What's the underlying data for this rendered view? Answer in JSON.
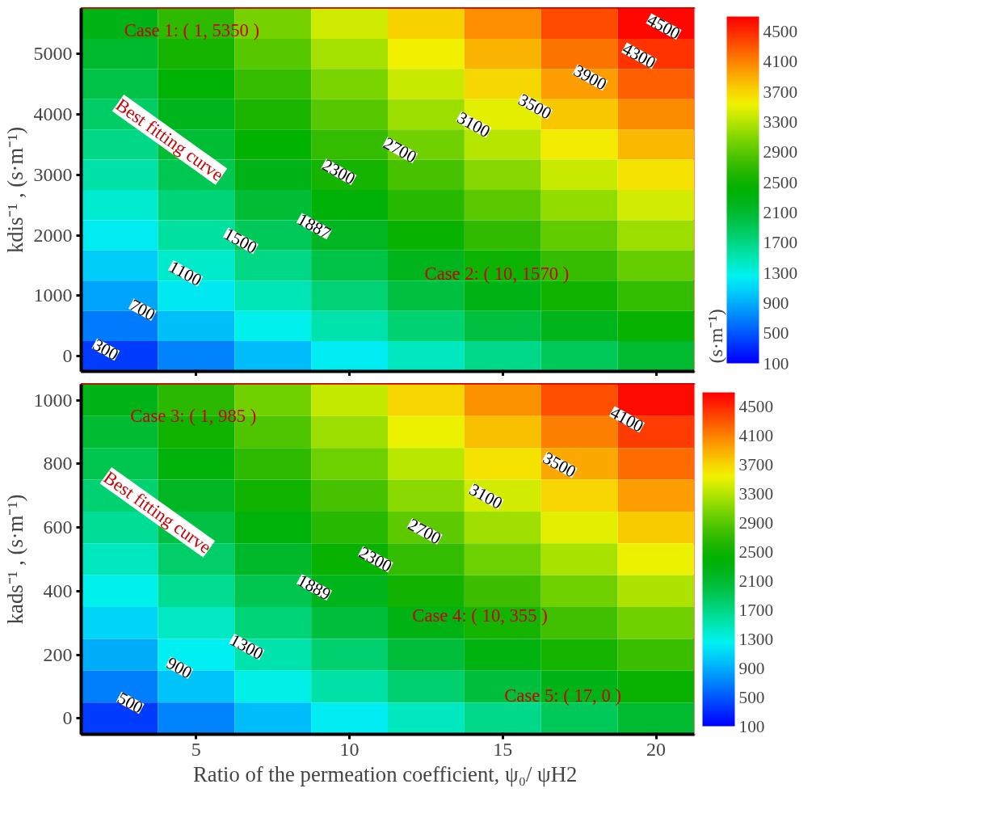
{
  "chart_data": [
    {
      "type": "heatmap",
      "ylabel": "kdis⁻¹ , (s·m⁻¹)",
      "clabel": "(s·m⁻¹)",
      "tick_labels": "y",
      "categories": [
        null,
        "5",
        null,
        "10",
        null,
        "15",
        null,
        "20"
      ],
      "y_categories": [
        null,
        "5000",
        null,
        "4000",
        null,
        "3000",
        null,
        "2000",
        null,
        "1000",
        null,
        "0"
      ],
      "cells": [
        [
          2258,
          2673,
          3042,
          3390,
          3722,
          4043,
          4355,
          4661
        ],
        [
          2124,
          2530,
          2891,
          3229,
          3552,
          3865,
          4168,
          4465
        ],
        [
          1984,
          2382,
          2734,
          3063,
          3378,
          3682,
          3976,
          4264
        ],
        [
          1841,
          2230,
          2572,
          2893,
          3199,
          3494,
          3780,
          4059
        ],
        [
          1695,
          2075,
          2409,
          2721,
          3018,
          3304,
          3581,
          3851
        ],
        [
          1544,
          1915,
          2240,
          2543,
          2831,
          3108,
          3377,
          3638
        ],
        [
          1388,
          1750,
          2067,
          2361,
          2640,
          2909,
          3168,
          3421
        ],
        [
          1226,
          1579,
          1887,
          2172,
          2443,
          2702,
          2953,
          3197
        ],
        [
          1054,
          1398,
          1697,
          1973,
          2236,
          2486,
          2728,
          2963
        ],
        [
          870,
          1205,
          1495,
          1763,
          2016,
          2258,
          2492,
          2717
        ],
        [
          662,
          989,
          1270,
          1529,
          1773,
          2006,
          2231,
          2448
        ],
        [
          376,
          694,
          966,
          1216,
          1452,
          1676,
          1892,
          2100
        ]
      ],
      "clim": [
        100,
        4700
      ],
      "cticks": [
        100,
        500,
        900,
        1300,
        1700,
        2100,
        2500,
        2900,
        3300,
        3700,
        4100,
        4500
      ],
      "annotations": [
        "Case 1: ( 1, 5350 )",
        "Case 2: ( 10, 1570 )",
        "Best fitting curve",
        "300",
        "700",
        "1100",
        "1500",
        "1887",
        "2300",
        "2700",
        "3100",
        "3500",
        "3900",
        "4300",
        "4500"
      ]
    },
    {
      "type": "heatmap",
      "ylabel": "kads⁻¹ , (s·m⁻¹)",
      "xlabel": "Ratio of the permeation coefficient,  ψ₀/ ψH2",
      "categories": [
        null,
        "5",
        null,
        "10",
        null,
        "15",
        null,
        "20"
      ],
      "y_categories": [
        "1000",
        null,
        "800",
        null,
        "600",
        null,
        "400",
        null,
        "200",
        null,
        "0"
      ],
      "cells": [
        [
          2239,
          2653,
          3021,
          3367,
          3698,
          4018,
          4329,
          4634
        ],
        [
          2092,
          2497,
          2856,
          3192,
          3518,
          3817,
          4118,
          4413
        ],
        [
          1939,
          2335,
          2684,
          3010,
          3322,
          3624,
          3917,
          4205
        ],
        [
          1783,
          2168,
          2507,
          2825,
          3127,
          3421,
          3706,
          3979
        ],
        [
          1622,
          1998,
          2327,
          2636,
          2928,
          3209,
          3483,
          3751
        ],
        [
          1455,
          1821,
          2141,
          2439,
          2721,
          2998,
          3258,
          3515
        ],
        [
          1282,
          1638,
          1949,
          2237,
          2511,
          2774,
          3028,
          3275
        ],
        [
          1098,
          1445,
          1747,
          2025,
          2289,
          2541,
          2785,
          3023
        ],
        [
          902,
          1238,
          1530,
          1798,
          2052,
          2296,
          2532,
          2759
        ],
        [
          680,
          1007,
          1289,
          1549,
          1794,
          2028,
          2253,
          2471
        ],
        [
          376,
          694,
          966,
          1216,
          1452,
          1676,
          1892,
          2100
        ]
      ],
      "clim": [
        100,
        4700
      ],
      "cticks": [
        100,
        500,
        900,
        1300,
        1700,
        2100,
        2500,
        2900,
        3300,
        3700,
        4100,
        4500
      ],
      "annotations": [
        "Case 3: ( 1, 985 )",
        "Case 4: ( 10, 355 )",
        "Case 5: ( 17, 0 )",
        "Best fitting curve",
        "500",
        "900",
        "1300",
        "1889",
        "2300",
        "2700",
        "3100",
        "3500",
        "4100"
      ]
    }
  ]
}
